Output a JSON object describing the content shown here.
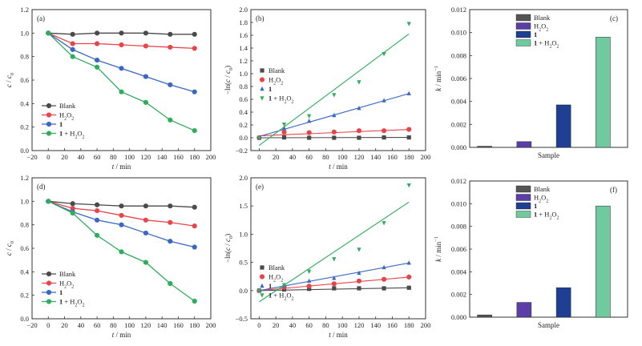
{
  "colors": {
    "blank": "#4a4a4a",
    "h2o2": "#e8454a",
    "cat": "#3a66c4",
    "cat_h2o2": "#2fad5c",
    "bar_blank": "#555555",
    "bar_h2o2": "#5b3fa6",
    "bar_cat": "#1f3f93",
    "bar_cat_h2o2": "#6fcaa0"
  },
  "chart_data": [
    {
      "panel": "(a)",
      "type": "line",
      "xlabel": "t / min",
      "ylabel": "c / c0",
      "xlim": [
        -20,
        200
      ],
      "ylim": [
        0.0,
        1.2
      ],
      "xticks": [
        -20,
        0,
        20,
        40,
        60,
        80,
        100,
        120,
        140,
        160,
        180,
        200
      ],
      "yticks": [
        0.0,
        0.2,
        0.4,
        0.6,
        0.8,
        1.0,
        1.2
      ],
      "legend_position": "bottom-left",
      "series": [
        {
          "name": "Blank",
          "key": "blank",
          "marker": "circle",
          "x": [
            0,
            30,
            60,
            90,
            120,
            150,
            180
          ],
          "y": [
            1.0,
            0.99,
            1.0,
            1.0,
            1.0,
            0.99,
            0.99
          ]
        },
        {
          "name": "H2O2",
          "key": "h2o2",
          "marker": "circle",
          "x": [
            0,
            30,
            60,
            90,
            120,
            150,
            180
          ],
          "y": [
            1.0,
            0.91,
            0.91,
            0.9,
            0.89,
            0.88,
            0.87
          ]
        },
        {
          "name": "1",
          "key": "cat",
          "marker": "circle",
          "x": [
            0,
            30,
            60,
            90,
            120,
            150,
            180
          ],
          "y": [
            1.0,
            0.86,
            0.77,
            0.7,
            0.63,
            0.56,
            0.5
          ]
        },
        {
          "name": "1 + H2O2",
          "key": "cat_h2o2",
          "marker": "circle",
          "x": [
            0,
            30,
            60,
            90,
            120,
            150,
            180
          ],
          "y": [
            1.0,
            0.8,
            0.71,
            0.5,
            0.41,
            0.26,
            0.17
          ]
        }
      ]
    },
    {
      "panel": "(b)",
      "type": "scatter",
      "xlabel": "t / min",
      "ylabel": "-ln(c / c0)",
      "xlim": [
        -10,
        200
      ],
      "ylim": [
        -0.2,
        2.0
      ],
      "xticks": [
        0,
        20,
        40,
        60,
        80,
        100,
        120,
        140,
        160,
        180,
        200
      ],
      "yticks": [
        -0.2,
        0.0,
        0.2,
        0.4,
        0.6,
        0.8,
        1.0,
        1.2,
        1.4,
        1.6,
        1.8,
        2.0
      ],
      "legend_position": "top-left",
      "series": [
        {
          "name": "Blank",
          "key": "blank",
          "marker": "square",
          "x": [
            0,
            30,
            60,
            90,
            120,
            150,
            180
          ],
          "y": [
            0.0,
            0.005,
            0.0,
            0.0,
            0.0,
            0.005,
            0.005
          ],
          "fit": [
            0.0,
            0.005
          ]
        },
        {
          "name": "H2O2",
          "key": "h2o2",
          "marker": "circle",
          "x": [
            0,
            30,
            60,
            90,
            120,
            150,
            180
          ],
          "y": [
            0.0,
            0.09,
            0.08,
            0.09,
            0.11,
            0.11,
            0.13
          ],
          "fit": [
            0.03,
            0.13
          ]
        },
        {
          "name": "1",
          "key": "cat",
          "marker": "triangle-up",
          "x": [
            0,
            30,
            60,
            90,
            120,
            150,
            180
          ],
          "y": [
            0.0,
            0.15,
            0.26,
            0.35,
            0.46,
            0.58,
            0.69
          ],
          "fit": [
            0.02,
            0.69
          ]
        },
        {
          "name": "1 + H2O2",
          "key": "cat_h2o2",
          "marker": "triangle-down",
          "x": [
            0,
            30,
            60,
            90,
            120,
            150,
            180
          ],
          "y": [
            0.0,
            0.21,
            0.34,
            0.67,
            0.87,
            1.31,
            1.78
          ],
          "fit": [
            -0.12,
            1.62
          ]
        }
      ]
    },
    {
      "panel": "(c)",
      "type": "bar",
      "xlabel": "Sample",
      "ylabel": "k / min-1",
      "ylim": [
        0.0,
        0.012
      ],
      "yticks": [
        "0.000",
        "0.002",
        "0.004",
        "0.006",
        "0.008",
        "0.010",
        "0.012"
      ],
      "legend_position": "top-center",
      "series": [
        {
          "name": "Blank",
          "key": "bar_blank",
          "value": 0.0001
        },
        {
          "name": "H2O2",
          "key": "bar_h2o2",
          "value": 0.0005
        },
        {
          "name": "1",
          "key": "bar_cat",
          "value": 0.0037
        },
        {
          "name": "1 + H2O2",
          "key": "bar_cat_h2o2",
          "value": 0.0096
        }
      ]
    },
    {
      "panel": "(d)",
      "type": "line",
      "xlabel": "t / min",
      "ylabel": "c / c0",
      "xlim": [
        -20,
        200
      ],
      "ylim": [
        0.0,
        1.2
      ],
      "xticks": [
        -20,
        0,
        20,
        40,
        60,
        80,
        100,
        120,
        140,
        160,
        180,
        200
      ],
      "yticks": [
        0.0,
        0.2,
        0.4,
        0.6,
        0.8,
        1.0,
        1.2
      ],
      "legend_position": "bottom-left",
      "series": [
        {
          "name": "Blank",
          "key": "blank",
          "marker": "circle",
          "x": [
            0,
            30,
            60,
            90,
            120,
            150,
            180
          ],
          "y": [
            1.0,
            0.98,
            0.97,
            0.96,
            0.96,
            0.96,
            0.95
          ]
        },
        {
          "name": "H2O2",
          "key": "h2o2",
          "marker": "circle",
          "x": [
            0,
            30,
            60,
            90,
            120,
            150,
            180
          ],
          "y": [
            1.0,
            0.94,
            0.92,
            0.88,
            0.84,
            0.82,
            0.79
          ]
        },
        {
          "name": "1",
          "key": "cat",
          "marker": "circle",
          "x": [
            0,
            30,
            60,
            90,
            120,
            150,
            180
          ],
          "y": [
            1.0,
            0.91,
            0.84,
            0.8,
            0.73,
            0.66,
            0.61
          ]
        },
        {
          "name": "1 + H2O2",
          "key": "cat_h2o2",
          "marker": "circle",
          "x": [
            0,
            30,
            60,
            90,
            120,
            150,
            180
          ],
          "y": [
            1.0,
            0.9,
            0.71,
            0.57,
            0.48,
            0.3,
            0.15
          ]
        }
      ]
    },
    {
      "panel": "(e)",
      "type": "scatter",
      "xlabel": "t / min",
      "ylabel": "-ln(c / c0)",
      "xlim": [
        -10,
        200
      ],
      "ylim": [
        -0.5,
        2.0
      ],
      "xticks": [
        0,
        20,
        40,
        60,
        80,
        100,
        120,
        140,
        160,
        180,
        200
      ],
      "yticks": [
        -0.5,
        0.0,
        0.5,
        1.0,
        1.5,
        2.0
      ],
      "legend_position": "center-left",
      "series": [
        {
          "name": "Blank",
          "key": "blank",
          "marker": "square",
          "x": [
            0,
            30,
            60,
            90,
            120,
            150,
            180
          ],
          "y": [
            0.0,
            0.02,
            0.03,
            0.04,
            0.04,
            0.04,
            0.05
          ],
          "fit": [
            0.0,
            0.05
          ]
        },
        {
          "name": "H2O2",
          "key": "h2o2",
          "marker": "circle",
          "x": [
            0,
            30,
            60,
            90,
            120,
            150,
            180
          ],
          "y": [
            0.0,
            0.06,
            0.08,
            0.12,
            0.17,
            0.2,
            0.24
          ],
          "fit": [
            0.0,
            0.24
          ]
        },
        {
          "name": "1",
          "key": "cat",
          "marker": "triangle-up",
          "x": [
            0,
            30,
            60,
            90,
            120,
            150,
            180
          ],
          "y": [
            0.0,
            0.09,
            0.17,
            0.22,
            0.31,
            0.41,
            0.49
          ],
          "fit": [
            0.0,
            0.49
          ]
        },
        {
          "name": "1 + H2O2",
          "key": "cat_h2o2",
          "marker": "triangle-down",
          "x": [
            0,
            30,
            60,
            90,
            120,
            150,
            180
          ],
          "y": [
            0.0,
            0.1,
            0.34,
            0.56,
            0.73,
            1.2,
            1.87
          ],
          "fit": [
            -0.2,
            1.57
          ]
        }
      ]
    },
    {
      "panel": "(f)",
      "type": "bar",
      "xlabel": "Sample",
      "ylabel": "k / min-1",
      "ylim": [
        0.0,
        0.012
      ],
      "yticks": [
        "0.000",
        "0.002",
        "0.004",
        "0.006",
        "0.008",
        "0.010",
        "0.012"
      ],
      "legend_position": "top-center",
      "series": [
        {
          "name": "Blank",
          "key": "bar_blank",
          "value": 0.0002
        },
        {
          "name": "H2O2",
          "key": "bar_h2o2",
          "value": 0.0013
        },
        {
          "name": "1",
          "key": "bar_cat",
          "value": 0.0026
        },
        {
          "name": "1 + H2O2",
          "key": "bar_cat_h2o2",
          "value": 0.0098
        }
      ]
    }
  ]
}
